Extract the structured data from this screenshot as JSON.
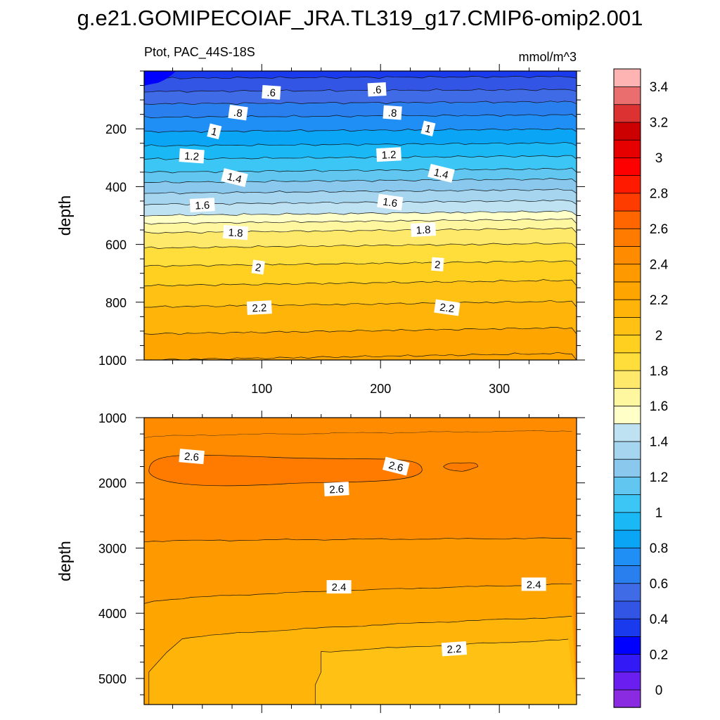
{
  "title": "g.e21.GOMIPECOIAF_JRA.TL319_g17.CMIP6-omip2.001",
  "subtitle_left": "Ptot, PAC_44S-18S",
  "subtitle_right": "mmol/m^3",
  "chart_data": [
    {
      "type": "heatmap",
      "panel": "upper",
      "xlabel": "",
      "ylabel": "depth",
      "xlim": [
        1,
        365
      ],
      "ylim": [
        1000,
        0
      ],
      "x_ticks": [
        100,
        200,
        300
      ],
      "y_ticks": [
        200,
        400,
        600,
        800,
        1000
      ],
      "contour_levels": [
        0.5,
        0.6,
        0.7,
        0.8,
        0.9,
        1.0,
        1.1,
        1.2,
        1.3,
        1.4,
        1.5,
        1.6,
        1.7,
        1.8,
        1.9,
        2.0,
        2.1,
        2.2,
        2.3,
        2.4
      ],
      "profile": {
        "depth": [
          0,
          50,
          100,
          150,
          200,
          250,
          300,
          350,
          400,
          450,
          500,
          550,
          600,
          650,
          700,
          750,
          800,
          850,
          900,
          950,
          1000
        ],
        "ptot": [
          0.45,
          0.55,
          0.67,
          0.78,
          0.88,
          0.98,
          1.09,
          1.2,
          1.34,
          1.47,
          1.6,
          1.78,
          1.88,
          1.96,
          2.04,
          2.11,
          2.18,
          2.24,
          2.29,
          2.34,
          2.39
        ]
      },
      "contour_labels": [
        {
          "text": ".6",
          "x": 108,
          "depth": 75
        },
        {
          "text": ".6",
          "x": 197,
          "depth": 65
        },
        {
          "text": ".8",
          "x": 80,
          "depth": 145
        },
        {
          "text": ".8",
          "x": 210,
          "depth": 145
        },
        {
          "text": "1",
          "x": 60,
          "depth": 210
        },
        {
          "text": "1",
          "x": 240,
          "depth": 200
        },
        {
          "text": "1.2",
          "x": 41,
          "depth": 295
        },
        {
          "text": "1.2",
          "x": 207,
          "depth": 290
        },
        {
          "text": "1.4",
          "x": 77,
          "depth": 370
        },
        {
          "text": "1.4",
          "x": 251,
          "depth": 355
        },
        {
          "text": "1.6",
          "x": 50,
          "depth": 465
        },
        {
          "text": "1.6",
          "x": 208,
          "depth": 455
        },
        {
          "text": "1.8",
          "x": 78,
          "depth": 560
        },
        {
          "text": "1.8",
          "x": 236,
          "depth": 550
        },
        {
          "text": "2",
          "x": 97,
          "depth": 680
        },
        {
          "text": "2",
          "x": 248,
          "depth": 670
        },
        {
          "text": "2.2",
          "x": 98,
          "depth": 820
        },
        {
          "text": "2.2",
          "x": 256,
          "depth": 820
        }
      ]
    },
    {
      "type": "heatmap",
      "panel": "lower",
      "xlabel": "",
      "ylabel": "depth",
      "xlim": [
        1,
        365
      ],
      "ylim": [
        5400,
        1000
      ],
      "x_ticks": [
        100,
        200,
        300
      ],
      "y_ticks": [
        1000,
        2000,
        3000,
        4000,
        5000
      ],
      "regions": [
        {
          "level": ">2.6",
          "x": [
            5,
            235
          ],
          "depth": [
            1550,
            2100
          ]
        },
        {
          "level": ">2.6",
          "x": [
            253,
            282
          ],
          "depth": [
            1700,
            1800
          ]
        }
      ],
      "contour_lines": [
        {
          "level": 2.6,
          "depth": [
            1300,
            1200
          ]
        },
        {
          "level": 2.5,
          "depth": [
            2900,
            2850
          ]
        },
        {
          "level": 2.4,
          "depth": [
            3850,
            3550
          ]
        },
        {
          "level": 2.3,
          "depth": [
            4500,
            4050
          ]
        },
        {
          "level": 2.2,
          "x_from": 150,
          "depth": [
            4900,
            4400
          ]
        }
      ],
      "contour_labels": [
        {
          "text": "2.6",
          "x": 41,
          "depth": 1600
        },
        {
          "text": "2.6",
          "x": 213,
          "depth": 1750
        },
        {
          "text": "2.6",
          "x": 163,
          "depth": 2100
        },
        {
          "text": "2.4",
          "x": 165,
          "depth": 3600
        },
        {
          "text": "2.4",
          "x": 329,
          "depth": 3560
        },
        {
          "text": "2.2",
          "x": 262,
          "depth": 4550
        }
      ]
    }
  ],
  "colorbar": {
    "labels": [
      "0",
      "0.2",
      "0.4",
      "0.6",
      "0.8",
      "1",
      "1.2",
      "1.4",
      "1.6",
      "1.8",
      "2",
      "2.2",
      "2.4",
      "2.6",
      "2.8",
      "3",
      "3.2",
      "3.4"
    ],
    "colors": [
      "#8a2be2",
      "#6a1ff0",
      "#3219f5",
      "#0000ff",
      "#1a3aee",
      "#3255e6",
      "#3f6be6",
      "#2a7fee",
      "#1f8ef5",
      "#0aa5f5",
      "#1ab8f5",
      "#3cc6f5",
      "#62c7f0",
      "#8ac8ee",
      "#a5d5ef",
      "#bfe2f2",
      "#ffffc8",
      "#fff6a0",
      "#ffe96a",
      "#ffde3c",
      "#ffd020",
      "#ffc214",
      "#ffb40a",
      "#ffa500",
      "#ff9900",
      "#ff8c00",
      "#ff7b00",
      "#ff6600",
      "#ff3c00",
      "#ff1a00",
      "#ff0000",
      "#e60000",
      "#cc0000",
      "#dc3232",
      "#ea6e6e",
      "#ffb4b4"
    ]
  }
}
